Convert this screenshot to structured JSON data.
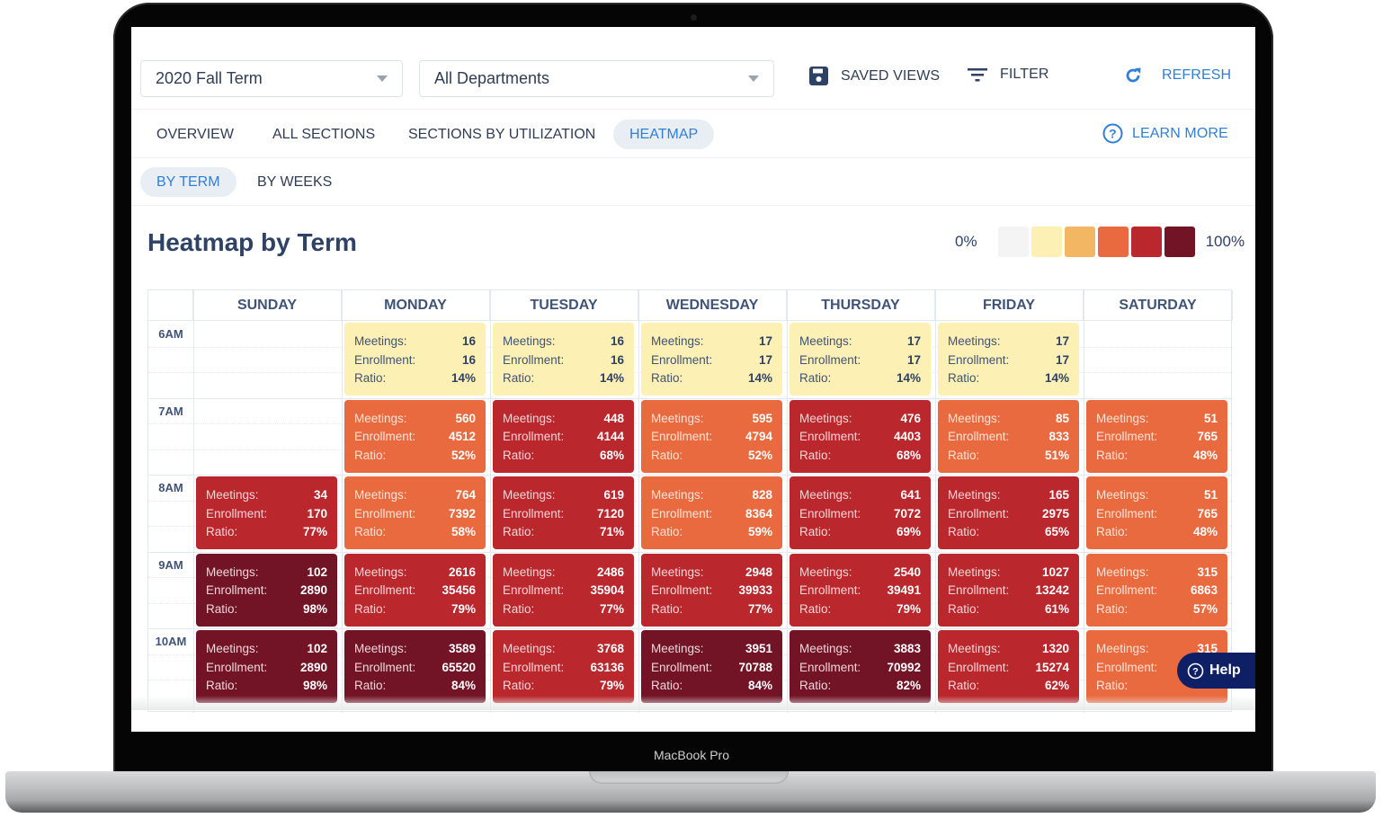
{
  "device": {
    "brand_label": "MacBook Pro"
  },
  "toolbar": {
    "term_select": {
      "value": "2020 Fall Term"
    },
    "department_select": {
      "value": "All Departments"
    },
    "saved_views_label": "SAVED VIEWS",
    "filter_label": "FILTER",
    "refresh_label": "REFRESH"
  },
  "tabs": {
    "items": [
      {
        "label": "OVERVIEW",
        "active": false
      },
      {
        "label": "ALL SECTIONS",
        "active": false
      },
      {
        "label": "SECTIONS BY UTILIZATION",
        "active": false
      },
      {
        "label": "HEATMAP",
        "active": true
      }
    ],
    "learn_more_label": "LEARN MORE"
  },
  "subtabs": {
    "items": [
      {
        "label": "BY TERM",
        "active": true
      },
      {
        "label": "BY WEEKS",
        "active": false
      }
    ]
  },
  "heatmap": {
    "title": "Heatmap by Term",
    "legend": {
      "min_label": "0%",
      "max_label": "100%",
      "colors": [
        "#f4f4f4",
        "#fdf0b4",
        "#f3b763",
        "#ea6a40",
        "#ba272d",
        "#721326"
      ]
    },
    "metric_labels": {
      "meetings": "Meetings:",
      "enrollment": "Enrollment:",
      "ratio": "Ratio:"
    },
    "days": [
      "SUNDAY",
      "MONDAY",
      "TUESDAY",
      "WEDNESDAY",
      "THURSDAY",
      "FRIDAY",
      "SATURDAY"
    ],
    "times": [
      "6AM",
      "7AM",
      "8AM",
      "9AM",
      "10AM"
    ]
  },
  "chart_data": {
    "type": "heatmap",
    "title": "Heatmap by Term",
    "x": [
      "SUNDAY",
      "MONDAY",
      "TUESDAY",
      "WEDNESDAY",
      "THURSDAY",
      "FRIDAY",
      "SATURDAY"
    ],
    "y": [
      "6AM",
      "7AM",
      "8AM",
      "9AM",
      "10AM"
    ],
    "legend": {
      "min": "0%",
      "max": "100%"
    },
    "cells": {
      "6AM": {
        "SUNDAY": null,
        "MONDAY": {
          "meetings": 16,
          "enrollment": 16,
          "ratio": "14%",
          "level": 1
        },
        "TUESDAY": {
          "meetings": 16,
          "enrollment": 16,
          "ratio": "14%",
          "level": 1
        },
        "WEDNESDAY": {
          "meetings": 17,
          "enrollment": 17,
          "ratio": "14%",
          "level": 1
        },
        "THURSDAY": {
          "meetings": 17,
          "enrollment": 17,
          "ratio": "14%",
          "level": 1
        },
        "FRIDAY": {
          "meetings": 17,
          "enrollment": 17,
          "ratio": "14%",
          "level": 1
        },
        "SATURDAY": null
      },
      "7AM": {
        "SUNDAY": null,
        "MONDAY": {
          "meetings": 560,
          "enrollment": 4512,
          "ratio": "52%",
          "level": 3
        },
        "TUESDAY": {
          "meetings": 448,
          "enrollment": 4144,
          "ratio": "68%",
          "level": 4
        },
        "WEDNESDAY": {
          "meetings": 595,
          "enrollment": 4794,
          "ratio": "52%",
          "level": 3
        },
        "THURSDAY": {
          "meetings": 476,
          "enrollment": 4403,
          "ratio": "68%",
          "level": 4
        },
        "FRIDAY": {
          "meetings": 85,
          "enrollment": 833,
          "ratio": "51%",
          "level": 3
        },
        "SATURDAY": {
          "meetings": 51,
          "enrollment": 765,
          "ratio": "48%",
          "level": 3
        }
      },
      "8AM": {
        "SUNDAY": {
          "meetings": 34,
          "enrollment": 170,
          "ratio": "77%",
          "level": 4
        },
        "MONDAY": {
          "meetings": 764,
          "enrollment": 7392,
          "ratio": "58%",
          "level": 3
        },
        "TUESDAY": {
          "meetings": 619,
          "enrollment": 7120,
          "ratio": "71%",
          "level": 4
        },
        "WEDNESDAY": {
          "meetings": 828,
          "enrollment": 8364,
          "ratio": "59%",
          "level": 3
        },
        "THURSDAY": {
          "meetings": 641,
          "enrollment": 7072,
          "ratio": "69%",
          "level": 4
        },
        "FRIDAY": {
          "meetings": 165,
          "enrollment": 2975,
          "ratio": "65%",
          "level": 4
        },
        "SATURDAY": {
          "meetings": 51,
          "enrollment": 765,
          "ratio": "48%",
          "level": 3
        }
      },
      "9AM": {
        "SUNDAY": {
          "meetings": 102,
          "enrollment": 2890,
          "ratio": "98%",
          "level": 5
        },
        "MONDAY": {
          "meetings": 2616,
          "enrollment": 35456,
          "ratio": "79%",
          "level": 4
        },
        "TUESDAY": {
          "meetings": 2486,
          "enrollment": 35904,
          "ratio": "77%",
          "level": 4
        },
        "WEDNESDAY": {
          "meetings": 2948,
          "enrollment": 39933,
          "ratio": "77%",
          "level": 4
        },
        "THURSDAY": {
          "meetings": 2540,
          "enrollment": 39491,
          "ratio": "79%",
          "level": 4
        },
        "FRIDAY": {
          "meetings": 1027,
          "enrollment": 13242,
          "ratio": "61%",
          "level": 4
        },
        "SATURDAY": {
          "meetings": 315,
          "enrollment": 6863,
          "ratio": "57%",
          "level": 3
        }
      },
      "10AM": {
        "SUNDAY": {
          "meetings": 102,
          "enrollment": 2890,
          "ratio": "98%",
          "level": 5
        },
        "MONDAY": {
          "meetings": 3589,
          "enrollment": 65520,
          "ratio": "84%",
          "level": 5
        },
        "TUESDAY": {
          "meetings": 3768,
          "enrollment": 63136,
          "ratio": "79%",
          "level": 4
        },
        "WEDNESDAY": {
          "meetings": 3951,
          "enrollment": 70788,
          "ratio": "84%",
          "level": 5
        },
        "THURSDAY": {
          "meetings": 3883,
          "enrollment": 70992,
          "ratio": "82%",
          "level": 5
        },
        "FRIDAY": {
          "meetings": 1320,
          "enrollment": 15274,
          "ratio": "62%",
          "level": 4
        },
        "SATURDAY": {
          "meetings": 315,
          "enrollment": "",
          "ratio": "",
          "level": 3
        }
      }
    }
  },
  "help_button": {
    "label": "Help"
  }
}
